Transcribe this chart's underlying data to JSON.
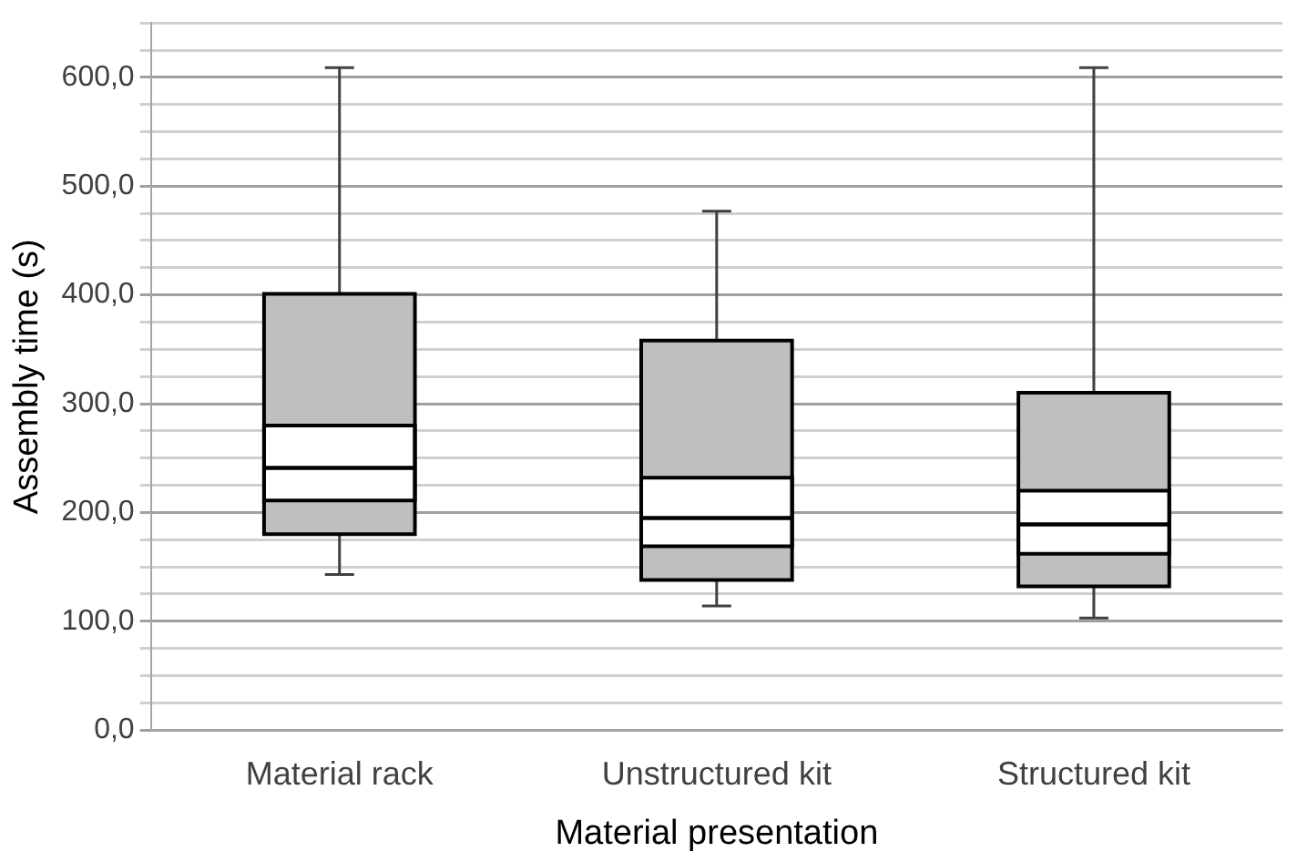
{
  "chart_data": {
    "type": "box",
    "xlabel": "Material presentation",
    "ylabel": "Assembly time (s)",
    "categories": [
      "Material rack",
      "Unstructured kit",
      "Structured kit"
    ],
    "series": [
      {
        "color": "#bfbfbf",
        "boxes": [
          {
            "low": 143,
            "q1": 180,
            "median": 241,
            "q3": 401,
            "high": 609
          },
          {
            "low": 114,
            "q1": 138,
            "median": 195,
            "q3": 358,
            "high": 477
          },
          {
            "low": 103,
            "q1": 132,
            "median": 189,
            "q3": 310,
            "high": 609
          }
        ]
      },
      {
        "color": "#ffffff",
        "boxes": [
          {
            "low": 211,
            "q1": 211,
            "median": 241,
            "q3": 280,
            "high": 280
          },
          {
            "low": 169,
            "q1": 169,
            "median": 195,
            "q3": 232,
            "high": 232
          },
          {
            "low": 162,
            "q1": 162,
            "median": 189,
            "q3": 220,
            "high": 220
          }
        ]
      }
    ],
    "ylim": [
      0,
      650
    ],
    "yticks": [
      {
        "value": 0,
        "label": "0,0"
      },
      {
        "value": 25,
        "label": null
      },
      {
        "value": 50,
        "label": null
      },
      {
        "value": 75,
        "label": null
      },
      {
        "value": 100,
        "label": "100,0"
      },
      {
        "value": 125,
        "label": null
      },
      {
        "value": 150,
        "label": null
      },
      {
        "value": 175,
        "label": null
      },
      {
        "value": 200,
        "label": "200,0"
      },
      {
        "value": 225,
        "label": null
      },
      {
        "value": 250,
        "label": null
      },
      {
        "value": 275,
        "label": null
      },
      {
        "value": 300,
        "label": "300,0"
      },
      {
        "value": 325,
        "label": null
      },
      {
        "value": 350,
        "label": null
      },
      {
        "value": 375,
        "label": null
      },
      {
        "value": 400,
        "label": "400,0"
      },
      {
        "value": 425,
        "label": null
      },
      {
        "value": 450,
        "label": null
      },
      {
        "value": 475,
        "label": null
      },
      {
        "value": 500,
        "label": "500,0"
      },
      {
        "value": 525,
        "label": null
      },
      {
        "value": 550,
        "label": null
      },
      {
        "value": 575,
        "label": null
      },
      {
        "value": 600,
        "label": "600,0"
      },
      {
        "value": 625,
        "label": null
      },
      {
        "value": 650,
        "label": null
      }
    ],
    "grid": "y",
    "legend": false
  }
}
